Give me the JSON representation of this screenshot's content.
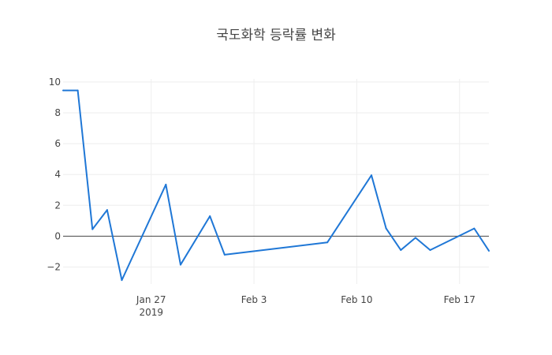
{
  "chart_data": {
    "type": "line",
    "title": "국도화학 등락률 변화",
    "xlabel": "",
    "ylabel": "",
    "x_axis_type": "date",
    "xlim": [
      "2019-01-21",
      "2019-02-19"
    ],
    "ylim": [
      -3.1,
      10.2
    ],
    "x_ticks": [
      {
        "date": "2019-01-27",
        "label": "Jan 27",
        "sublabel": "2019"
      },
      {
        "date": "2019-02-03",
        "label": "Feb 3",
        "sublabel": ""
      },
      {
        "date": "2019-02-10",
        "label": "Feb 10",
        "sublabel": ""
      },
      {
        "date": "2019-02-17",
        "label": "Feb 17",
        "sublabel": ""
      }
    ],
    "y_ticks": [
      {
        "value": 10,
        "label": "10"
      },
      {
        "value": 8,
        "label": "8"
      },
      {
        "value": 6,
        "label": "6"
      },
      {
        "value": 4,
        "label": "4"
      },
      {
        "value": 2,
        "label": "2"
      },
      {
        "value": 0,
        "label": "0"
      },
      {
        "value": -2,
        "label": "−2"
      }
    ],
    "grid": true,
    "zero_line": true,
    "series": [
      {
        "color": "#1f77d6",
        "points": [
          {
            "x": "2019-01-21",
            "y": 9.45
          },
          {
            "x": "2019-01-22",
            "y": 9.45
          },
          {
            "x": "2019-01-23",
            "y": 0.45
          },
          {
            "x": "2019-01-24",
            "y": 1.7
          },
          {
            "x": "2019-01-25",
            "y": -2.85
          },
          {
            "x": "2019-01-28",
            "y": 3.35
          },
          {
            "x": "2019-01-29",
            "y": -1.85
          },
          {
            "x": "2019-01-31",
            "y": 1.3
          },
          {
            "x": "2019-02-01",
            "y": -1.2
          },
          {
            "x": "2019-02-08",
            "y": -0.4
          },
          {
            "x": "2019-02-11",
            "y": 3.95
          },
          {
            "x": "2019-02-12",
            "y": 0.5
          },
          {
            "x": "2019-02-13",
            "y": -0.9
          },
          {
            "x": "2019-02-14",
            "y": -0.1
          },
          {
            "x": "2019-02-15",
            "y": -0.9
          },
          {
            "x": "2019-02-18",
            "y": 0.5
          },
          {
            "x": "2019-02-19",
            "y": -0.95
          }
        ]
      }
    ]
  }
}
